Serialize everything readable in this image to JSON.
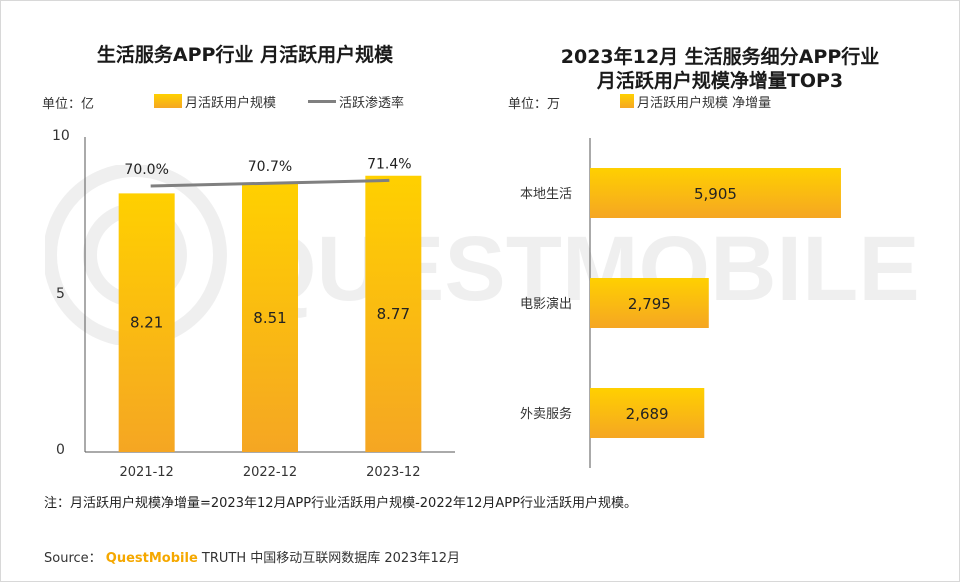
{
  "left_chart": {
    "title": "生活服务APP行业 月活跃用户规模",
    "unit": "单位：亿",
    "legend_bar": "月活跃用户规模",
    "legend_line": "活跃渗透率",
    "y_ticks": [
      "10",
      "5",
      "0"
    ]
  },
  "right_chart": {
    "title_line1": "2023年12月 生活服务细分APP行业",
    "title_line2": "月活跃用户规模净增量TOP3",
    "unit": "单位：万",
    "legend_bar": "月活跃用户规模 净增量"
  },
  "note": "注：月活跃用户规模净增量=2023年12月APP行业活跃用户规模-2022年12月APP行业活跃用户规模。",
  "source": {
    "label": "Source：",
    "brand": "QuestMobile",
    "rest": "TRUTH 中国移动互联网数据库 2023年12月"
  },
  "watermark": "QUESTMOBILE",
  "colors": {
    "bar_top": "#ffd000",
    "bar_bottom": "#f5a623",
    "line": "#808080"
  },
  "chart_data": [
    {
      "type": "bar",
      "title": "生活服务APP行业 月活跃用户规模",
      "categories": [
        "2021-12",
        "2022-12",
        "2023-12"
      ],
      "series": [
        {
          "name": "月活跃用户规模",
          "values": [
            8.21,
            8.51,
            8.77
          ],
          "labels": [
            "8.21",
            "8.51",
            "8.77"
          ]
        },
        {
          "name": "活跃渗透率",
          "type": "line",
          "values": [
            70.0,
            70.7,
            71.4
          ],
          "labels": [
            "70.0%",
            "70.7%",
            "71.4%"
          ]
        }
      ],
      "ylim": [
        0,
        10
      ],
      "ylabel": "单位：亿"
    },
    {
      "type": "bar",
      "orientation": "horizontal",
      "title": "2023年12月 生活服务细分APP行业 月活跃用户规模净增量TOP3",
      "categories": [
        "本地生活",
        "电影演出",
        "外卖服务"
      ],
      "series": [
        {
          "name": "月活跃用户规模 净增量",
          "values": [
            5905,
            2795,
            2689
          ],
          "labels": [
            "5,905",
            "2,795",
            "2,689"
          ]
        }
      ],
      "ylabel": "单位：万"
    }
  ]
}
